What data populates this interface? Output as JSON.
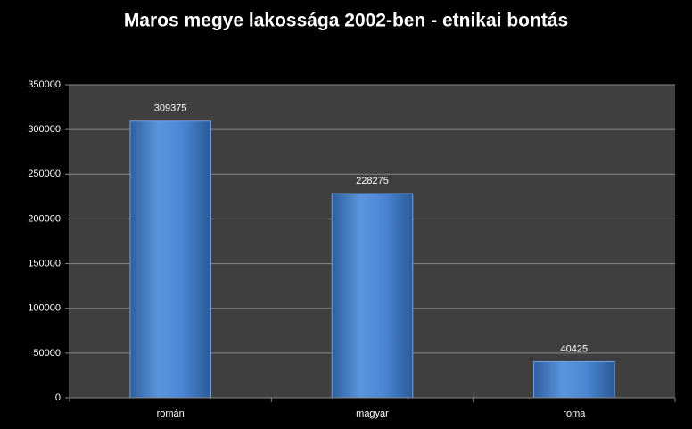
{
  "chart_data": {
    "type": "bar",
    "title": "Maros megye lakossága 2002-ben - etnikai bontás",
    "categories": [
      "román",
      "magyar",
      "roma"
    ],
    "values": [
      309375,
      228275,
      40425
    ],
    "color": "#4a86d4",
    "ylim": [
      0,
      350000
    ],
    "yticks": [
      0,
      50000,
      100000,
      150000,
      200000,
      250000,
      300000,
      350000
    ],
    "grid": true
  }
}
